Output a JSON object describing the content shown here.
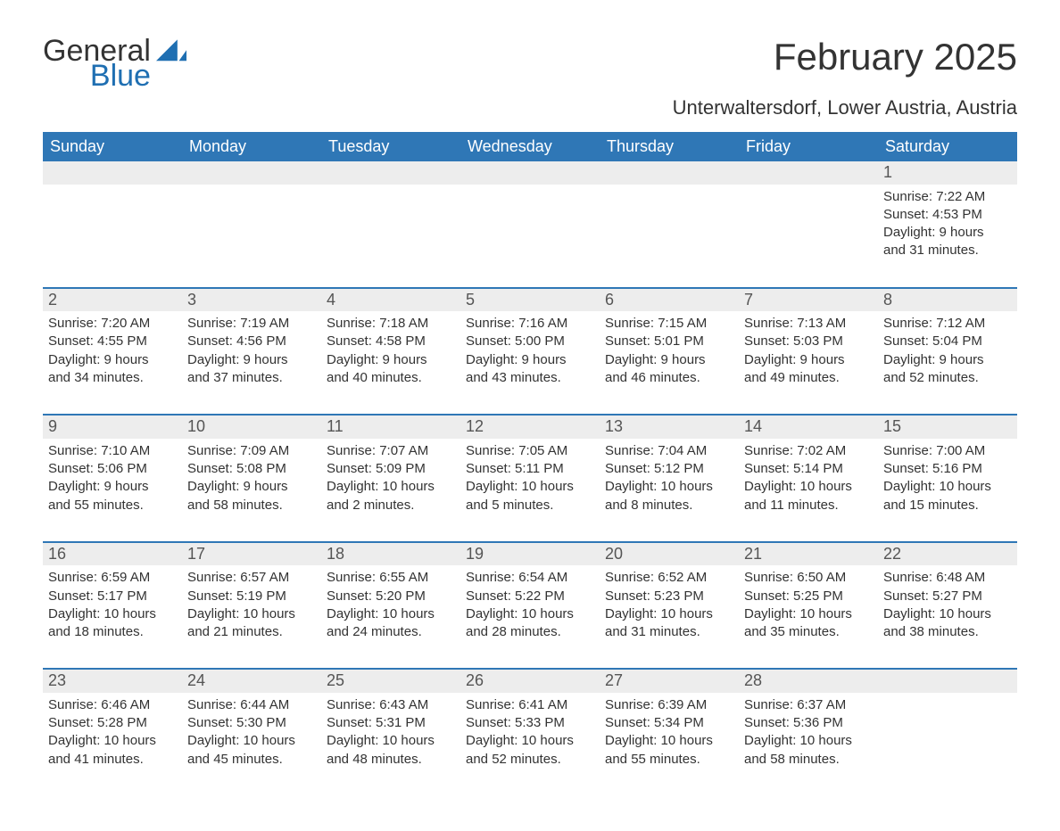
{
  "brand": {
    "general": "General",
    "blue": "Blue",
    "glyph_color": "#1f6fb2"
  },
  "title": "February 2025",
  "subtitle": "Unterwaltersdorf, Lower Austria, Austria",
  "colors": {
    "header_bg": "#2f77b6",
    "header_text": "#ffffff",
    "daynum_bg": "#ededed",
    "week_border": "#2f77b6",
    "body_bg": "#ffffff",
    "text": "#333333",
    "logo_blue": "#1f6fb2"
  },
  "calendar": {
    "day_headers": [
      "Sunday",
      "Monday",
      "Tuesday",
      "Wednesday",
      "Thursday",
      "Friday",
      "Saturday"
    ],
    "weeks": [
      [
        null,
        null,
        null,
        null,
        null,
        null,
        {
          "n": "1",
          "sunrise": "Sunrise: 7:22 AM",
          "sunset": "Sunset: 4:53 PM",
          "dl1": "Daylight: 9 hours",
          "dl2": "and 31 minutes."
        }
      ],
      [
        {
          "n": "2",
          "sunrise": "Sunrise: 7:20 AM",
          "sunset": "Sunset: 4:55 PM",
          "dl1": "Daylight: 9 hours",
          "dl2": "and 34 minutes."
        },
        {
          "n": "3",
          "sunrise": "Sunrise: 7:19 AM",
          "sunset": "Sunset: 4:56 PM",
          "dl1": "Daylight: 9 hours",
          "dl2": "and 37 minutes."
        },
        {
          "n": "4",
          "sunrise": "Sunrise: 7:18 AM",
          "sunset": "Sunset: 4:58 PM",
          "dl1": "Daylight: 9 hours",
          "dl2": "and 40 minutes."
        },
        {
          "n": "5",
          "sunrise": "Sunrise: 7:16 AM",
          "sunset": "Sunset: 5:00 PM",
          "dl1": "Daylight: 9 hours",
          "dl2": "and 43 minutes."
        },
        {
          "n": "6",
          "sunrise": "Sunrise: 7:15 AM",
          "sunset": "Sunset: 5:01 PM",
          "dl1": "Daylight: 9 hours",
          "dl2": "and 46 minutes."
        },
        {
          "n": "7",
          "sunrise": "Sunrise: 7:13 AM",
          "sunset": "Sunset: 5:03 PM",
          "dl1": "Daylight: 9 hours",
          "dl2": "and 49 minutes."
        },
        {
          "n": "8",
          "sunrise": "Sunrise: 7:12 AM",
          "sunset": "Sunset: 5:04 PM",
          "dl1": "Daylight: 9 hours",
          "dl2": "and 52 minutes."
        }
      ],
      [
        {
          "n": "9",
          "sunrise": "Sunrise: 7:10 AM",
          "sunset": "Sunset: 5:06 PM",
          "dl1": "Daylight: 9 hours",
          "dl2": "and 55 minutes."
        },
        {
          "n": "10",
          "sunrise": "Sunrise: 7:09 AM",
          "sunset": "Sunset: 5:08 PM",
          "dl1": "Daylight: 9 hours",
          "dl2": "and 58 minutes."
        },
        {
          "n": "11",
          "sunrise": "Sunrise: 7:07 AM",
          "sunset": "Sunset: 5:09 PM",
          "dl1": "Daylight: 10 hours",
          "dl2": "and 2 minutes."
        },
        {
          "n": "12",
          "sunrise": "Sunrise: 7:05 AM",
          "sunset": "Sunset: 5:11 PM",
          "dl1": "Daylight: 10 hours",
          "dl2": "and 5 minutes."
        },
        {
          "n": "13",
          "sunrise": "Sunrise: 7:04 AM",
          "sunset": "Sunset: 5:12 PM",
          "dl1": "Daylight: 10 hours",
          "dl2": "and 8 minutes."
        },
        {
          "n": "14",
          "sunrise": "Sunrise: 7:02 AM",
          "sunset": "Sunset: 5:14 PM",
          "dl1": "Daylight: 10 hours",
          "dl2": "and 11 minutes."
        },
        {
          "n": "15",
          "sunrise": "Sunrise: 7:00 AM",
          "sunset": "Sunset: 5:16 PM",
          "dl1": "Daylight: 10 hours",
          "dl2": "and 15 minutes."
        }
      ],
      [
        {
          "n": "16",
          "sunrise": "Sunrise: 6:59 AM",
          "sunset": "Sunset: 5:17 PM",
          "dl1": "Daylight: 10 hours",
          "dl2": "and 18 minutes."
        },
        {
          "n": "17",
          "sunrise": "Sunrise: 6:57 AM",
          "sunset": "Sunset: 5:19 PM",
          "dl1": "Daylight: 10 hours",
          "dl2": "and 21 minutes."
        },
        {
          "n": "18",
          "sunrise": "Sunrise: 6:55 AM",
          "sunset": "Sunset: 5:20 PM",
          "dl1": "Daylight: 10 hours",
          "dl2": "and 24 minutes."
        },
        {
          "n": "19",
          "sunrise": "Sunrise: 6:54 AM",
          "sunset": "Sunset: 5:22 PM",
          "dl1": "Daylight: 10 hours",
          "dl2": "and 28 minutes."
        },
        {
          "n": "20",
          "sunrise": "Sunrise: 6:52 AM",
          "sunset": "Sunset: 5:23 PM",
          "dl1": "Daylight: 10 hours",
          "dl2": "and 31 minutes."
        },
        {
          "n": "21",
          "sunrise": "Sunrise: 6:50 AM",
          "sunset": "Sunset: 5:25 PM",
          "dl1": "Daylight: 10 hours",
          "dl2": "and 35 minutes."
        },
        {
          "n": "22",
          "sunrise": "Sunrise: 6:48 AM",
          "sunset": "Sunset: 5:27 PM",
          "dl1": "Daylight: 10 hours",
          "dl2": "and 38 minutes."
        }
      ],
      [
        {
          "n": "23",
          "sunrise": "Sunrise: 6:46 AM",
          "sunset": "Sunset: 5:28 PM",
          "dl1": "Daylight: 10 hours",
          "dl2": "and 41 minutes."
        },
        {
          "n": "24",
          "sunrise": "Sunrise: 6:44 AM",
          "sunset": "Sunset: 5:30 PM",
          "dl1": "Daylight: 10 hours",
          "dl2": "and 45 minutes."
        },
        {
          "n": "25",
          "sunrise": "Sunrise: 6:43 AM",
          "sunset": "Sunset: 5:31 PM",
          "dl1": "Daylight: 10 hours",
          "dl2": "and 48 minutes."
        },
        {
          "n": "26",
          "sunrise": "Sunrise: 6:41 AM",
          "sunset": "Sunset: 5:33 PM",
          "dl1": "Daylight: 10 hours",
          "dl2": "and 52 minutes."
        },
        {
          "n": "27",
          "sunrise": "Sunrise: 6:39 AM",
          "sunset": "Sunset: 5:34 PM",
          "dl1": "Daylight: 10 hours",
          "dl2": "and 55 minutes."
        },
        {
          "n": "28",
          "sunrise": "Sunrise: 6:37 AM",
          "sunset": "Sunset: 5:36 PM",
          "dl1": "Daylight: 10 hours",
          "dl2": "and 58 minutes."
        },
        null
      ]
    ]
  }
}
